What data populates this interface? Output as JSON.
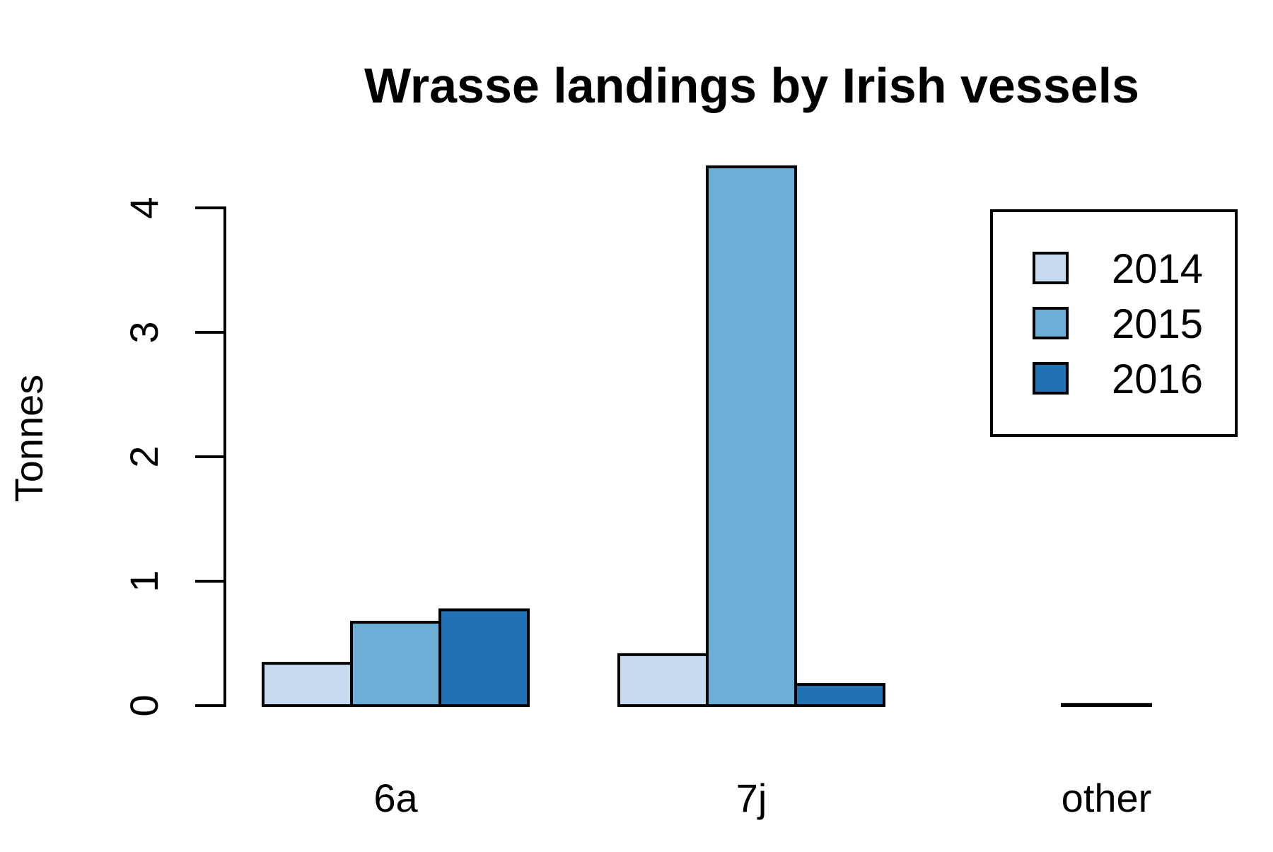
{
  "chart_data": {
    "type": "bar",
    "title": "Wrasse landings by Irish vessels",
    "xlabel": "",
    "ylabel": "Tonnes",
    "categories": [
      "6a",
      "7j",
      "other"
    ],
    "series": [
      {
        "name": "2014",
        "values": [
          0.34,
          0.41,
          0.0
        ],
        "color": "#C6DBEF"
      },
      {
        "name": "2015",
        "values": [
          0.67,
          4.33,
          0.01
        ],
        "color": "#6BAED6"
      },
      {
        "name": "2016",
        "values": [
          0.77,
          0.17,
          0.0
        ],
        "color": "#2171B5"
      }
    ],
    "yticks": [
      0,
      1,
      2,
      3,
      4
    ],
    "ylim": [
      0,
      4.33
    ],
    "grid": false,
    "legend": "top-right"
  }
}
